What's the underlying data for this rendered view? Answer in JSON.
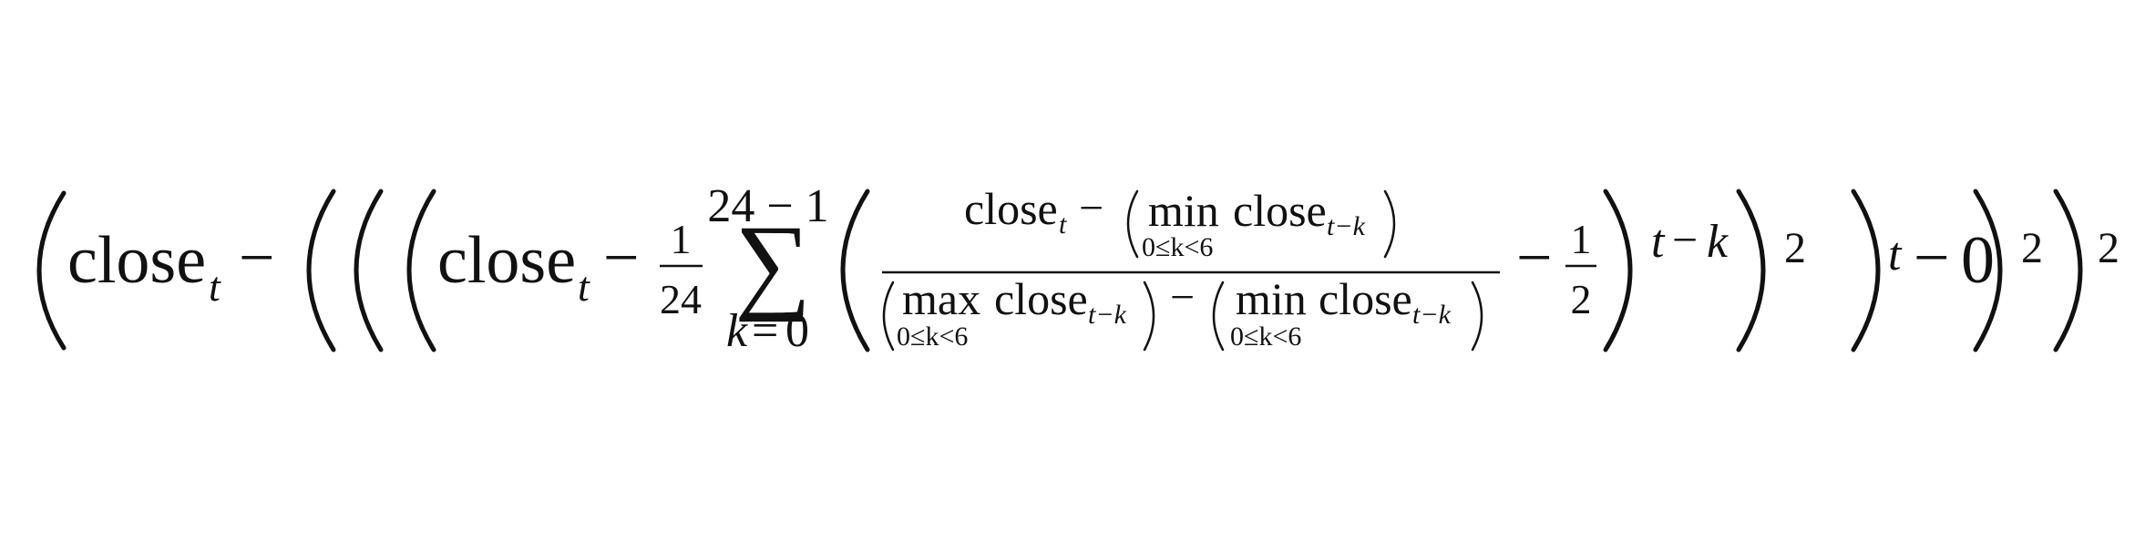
{
  "formula": {
    "word_close": "close",
    "sub_t": "t",
    "sub_t_minus_k": "t−k",
    "minus": "−",
    "equals": "=",
    "fraction_1": {
      "numerator": "1",
      "denominator": "24"
    },
    "sum": {
      "symbol": "∑",
      "upper_limit": "24 − 1",
      "lower_var": "k",
      "lower_value": "0"
    },
    "min_operator": "min",
    "max_operator": "max",
    "range_condition": "0≤k<6",
    "fraction_2": {
      "numerator": "1",
      "denominator": "2"
    },
    "outer_sub_var_t": "t",
    "outer_sub_var_k": "k",
    "zero": "0",
    "exponent_2": "2"
  }
}
